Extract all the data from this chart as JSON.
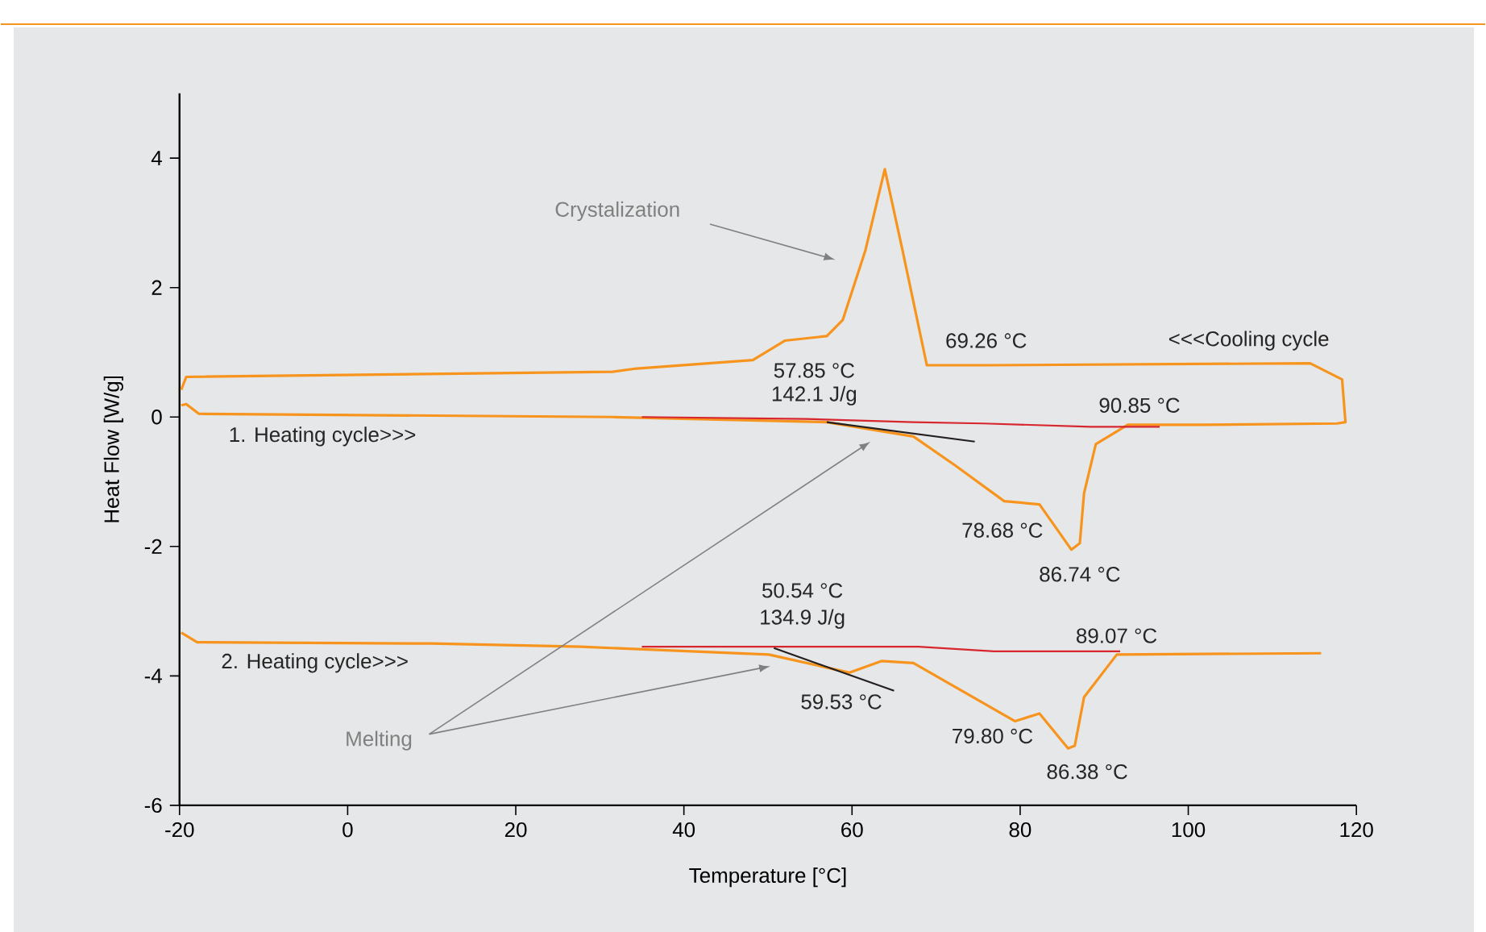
{
  "chart_data": {
    "type": "line",
    "xlabel": "Temperature [°C]",
    "ylabel": "Heat Flow [W/g]",
    "xlim": [
      -20,
      120
    ],
    "ylim": [
      -6,
      5
    ],
    "xticks": [
      -20,
      0,
      20,
      40,
      60,
      80,
      100,
      120
    ],
    "yticks": [
      -6,
      -4,
      -2,
      0,
      2,
      4
    ],
    "series": [
      {
        "color": "#f7941d",
        "x": [
          -19.8,
          -19.2,
          -17.7,
          31.5,
          57.0,
          67.3,
          72.3,
          78.1,
          82.3,
          86.1,
          87.1,
          87.6,
          89.0,
          92.8,
          101.8,
          117.7,
          118.7,
          118.3,
          114.5,
          76.2,
          68.9,
          66.0,
          63.9,
          61.6,
          58.9,
          57.0,
          52.0,
          48.2,
          34.4,
          31.5,
          -19.2,
          -19.8
        ],
        "values": [
          0.18,
          0.2,
          0.05,
          0.0,
          -0.08,
          -0.3,
          -0.75,
          -1.3,
          -1.35,
          -2.05,
          -1.95,
          -1.18,
          -0.42,
          -0.12,
          -0.12,
          -0.1,
          -0.08,
          0.58,
          0.83,
          0.8,
          0.8,
          2.58,
          3.83,
          2.58,
          1.5,
          1.25,
          1.18,
          0.88,
          0.75,
          0.7,
          0.62,
          0.42
        ]
      },
      {
        "color": "#f7941d",
        "x": [
          -19.8,
          -17.9,
          9.9,
          27.7,
          50.1,
          59.7,
          63.5,
          67.3,
          79.4,
          82.3,
          85.7,
          86.5,
          87.6,
          91.5,
          115.8
        ],
        "values": [
          -3.33,
          -3.48,
          -3.5,
          -3.55,
          -3.67,
          -3.95,
          -3.77,
          -3.8,
          -4.7,
          -4.58,
          -5.12,
          -5.08,
          -4.33,
          -3.67,
          -3.65
        ]
      },
      {
        "color": "#d7262e",
        "x": [
          35.0,
          54.5,
          67.3,
          75.6,
          88.4,
          96.6
        ],
        "values": [
          0.0,
          -0.03,
          -0.08,
          -0.1,
          -0.15,
          -0.15
        ]
      },
      {
        "color": "#d7262e",
        "x": [
          35.0,
          67.9,
          76.9,
          91.9
        ],
        "values": [
          -3.55,
          -3.55,
          -3.62,
          -3.62
        ]
      },
      {
        "color": "#231f20",
        "x": [
          57.0,
          74.6
        ],
        "values": [
          -0.08,
          -0.38
        ]
      },
      {
        "color": "#231f20",
        "x": [
          50.7,
          65.0
        ],
        "values": [
          -3.57,
          -4.23
        ]
      }
    ],
    "annotations": [
      "Crystalization",
      {
        "text": "<<<Cooling cycle",
        "x": 107.2,
        "y": 0.83
      },
      {
        "text": "1. Heating cycle>>>",
        "x": -3.0,
        "y": 0.0
      },
      {
        "text": "2. Heating cycle>>>",
        "x": -3.9,
        "y": -3.5
      },
      {
        "text": "57.85 °C",
        "x": 57.85,
        "y": -0.1
      },
      {
        "text": "142.1 J/g",
        "x": 57.85,
        "y": -0.1
      },
      {
        "text": "69.26 °C",
        "x": 69.26,
        "y": 0.78
      },
      {
        "text": "90.85 °C",
        "x": 90.85,
        "y": -0.12
      },
      {
        "text": "78.68 °C",
        "x": 78.68,
        "y": -1.32
      },
      {
        "text": "86.74 °C",
        "x": 86.74,
        "y": -2.05
      },
      {
        "text": "50.54 °C",
        "x": 50.54,
        "y": -3.57
      },
      {
        "text": "134.9 J/g",
        "x": 50.54,
        "y": -3.57
      },
      {
        "text": "59.53 °C",
        "x": 59.53,
        "y": -3.95
      },
      {
        "text": "89.07 °C",
        "x": 89.07,
        "y": -3.6
      },
      {
        "text": "79.80 °C",
        "x": 79.8,
        "y": -4.68
      },
      {
        "text": "86.38 °C",
        "x": 86.38,
        "y": -5.12
      },
      "Melting"
    ]
  }
}
